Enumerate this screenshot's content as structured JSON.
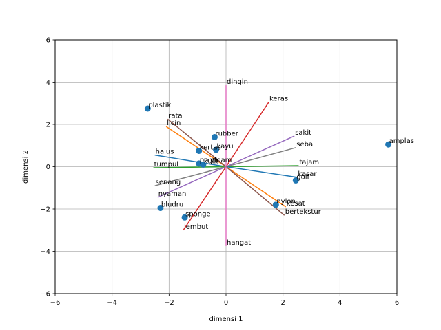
{
  "chart_data": {
    "type": "scatter",
    "title": "",
    "xlabel": "dimensi 1",
    "ylabel": "dimensi 2",
    "xlim": [
      -6,
      6
    ],
    "ylim": [
      -6,
      6
    ],
    "xticks": [
      -6,
      -4,
      -2,
      0,
      2,
      4,
      6
    ],
    "yticks": [
      -6,
      -4,
      -2,
      0,
      2,
      4,
      6
    ],
    "grid": true,
    "points": [
      {
        "label": "plastik",
        "x": -2.75,
        "y": 2.75
      },
      {
        "label": "rubber",
        "x": -0.4,
        "y": 1.4
      },
      {
        "label": "kertas",
        "x": -0.95,
        "y": 0.75
      },
      {
        "label": "kayu",
        "x": -0.35,
        "y": 0.8
      },
      {
        "label": "polyfoam",
        "x": -0.95,
        "y": 0.15
      },
      {
        "label": "kulit",
        "x": -0.8,
        "y": 0.1
      },
      {
        "label": "amplas",
        "x": 5.7,
        "y": 1.05
      },
      {
        "label": "golf",
        "x": 2.45,
        "y": -0.65
      },
      {
        "label": "nylon",
        "x": 1.75,
        "y": -1.8
      },
      {
        "label": "bludru",
        "x": -2.3,
        "y": -1.95
      },
      {
        "label": "sponge",
        "x": -1.45,
        "y": -2.4
      }
    ],
    "vectors": [
      {
        "label": "halus",
        "x": -2.5,
        "y": 0.55,
        "color": "#1f77b4"
      },
      {
        "label": "licin",
        "x": -2.1,
        "y": 1.9,
        "color": "#ff7f0e"
      },
      {
        "label": "tumpul",
        "x": -2.55,
        "y": -0.05,
        "color": "#2ca02c"
      },
      {
        "label": "keras",
        "x": 1.5,
        "y": 3.05,
        "color": "#d62728"
      },
      {
        "label": "sakit",
        "x": 2.4,
        "y": 1.45,
        "color": "#9467bd"
      },
      {
        "label": "rata",
        "x": -2.05,
        "y": 2.25,
        "color": "#8c564b"
      },
      {
        "label": "dingin",
        "x": 0.0,
        "y": 3.85,
        "color": "#e377c2"
      },
      {
        "label": "sebal",
        "x": 2.45,
        "y": 0.9,
        "color": "#7f7f7f"
      },
      {
        "label": "tajam",
        "x": 2.55,
        "y": 0.05,
        "color": "#2ca02c"
      },
      {
        "label": "kasar",
        "x": 2.5,
        "y": -0.5,
        "color": "#1f77b4"
      },
      {
        "label": "kesat",
        "x": 2.1,
        "y": -1.9,
        "color": "#ff7f0e"
      },
      {
        "label": "bertekstur",
        "x": 2.05,
        "y": -2.3,
        "color": "#8c564b"
      },
      {
        "label": "lembut",
        "x": -1.5,
        "y": -3.0,
        "color": "#d62728"
      },
      {
        "label": "nyaman",
        "x": -2.4,
        "y": -1.45,
        "color": "#9467bd"
      },
      {
        "label": "senang",
        "x": -2.5,
        "y": -0.9,
        "color": "#7f7f7f"
      },
      {
        "label": "hangat",
        "x": 0.0,
        "y": -3.75,
        "color": "#e377c2"
      }
    ],
    "point_color": "#1f77b4"
  }
}
